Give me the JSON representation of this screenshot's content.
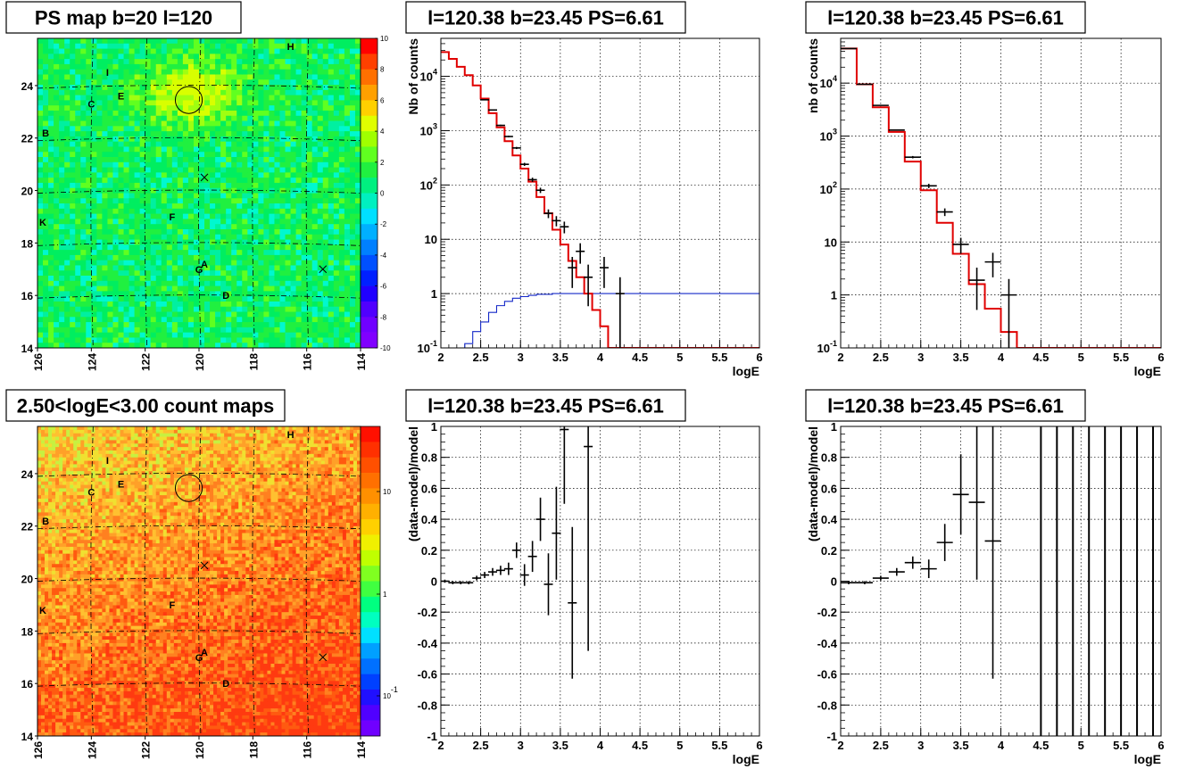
{
  "chart_data": [
    {
      "id": "ps_map",
      "type": "heatmap",
      "title": "PS map b=20 l=120",
      "x_ticks": [
        "126",
        "124",
        "122",
        "120",
        "118",
        "116",
        "114"
      ],
      "y_ticks": [
        "14",
        "16",
        "18",
        "20",
        "22",
        "24"
      ],
      "palette_ticks": [
        "10",
        "8",
        "6",
        "4",
        "2",
        "0",
        "-2",
        "-4",
        "-6",
        "-8",
        "-10"
      ],
      "zlim": [
        -10,
        10
      ],
      "markers": [
        {
          "label": "H",
          "l": 116.6,
          "b": 25.5
        },
        {
          "label": "I",
          "l": 123.4,
          "b": 24.5
        },
        {
          "label": "E",
          "l": 122.9,
          "b": 23.6
        },
        {
          "label": "C",
          "l": 124.0,
          "b": 23.3
        },
        {
          "label": "B",
          "l": 125.7,
          "b": 22.2
        },
        {
          "label": "F",
          "l": 121.0,
          "b": 19.0
        },
        {
          "label": "K",
          "l": 125.8,
          "b": 18.8
        },
        {
          "label": "A",
          "l": 119.8,
          "b": 17.2
        },
        {
          "label": "G",
          "l": 120.0,
          "b": 17.0
        },
        {
          "label": "D",
          "l": 119.0,
          "b": 16.0
        }
      ],
      "cross_markers": [
        {
          "l": 119.8,
          "b": 20.5
        },
        {
          "l": 115.4,
          "b": 17.0
        }
      ],
      "circle": {
        "l": 120.38,
        "b": 23.45,
        "r_deg": 0.5
      }
    },
    {
      "id": "spectrum_1",
      "type": "line",
      "title": "l=120.38 b=23.45 PS=6.61",
      "xlabel": "logE",
      "ylabel": "Nb of counts",
      "y_log": true,
      "xlim": [
        2,
        6
      ],
      "ylim": [
        0.1,
        50000
      ],
      "x_ticks": [
        "2",
        "2.5",
        "3",
        "3.5",
        "4",
        "4.5",
        "5",
        "5.5",
        "6"
      ],
      "y_ticks": [
        "10^-1",
        "1",
        "10",
        "10^2",
        "10^3",
        "10^4"
      ],
      "data_points": [
        {
          "x": 2.55,
          "y": 3700
        },
        {
          "x": 2.65,
          "y": 2400
        },
        {
          "x": 2.75,
          "y": 1250
        },
        {
          "x": 2.85,
          "y": 780
        },
        {
          "x": 2.95,
          "y": 480
        },
        {
          "x": 3.05,
          "y": 240
        },
        {
          "x": 3.15,
          "y": 125
        },
        {
          "x": 3.25,
          "y": 80
        },
        {
          "x": 3.35,
          "y": 30
        },
        {
          "x": 3.45,
          "y": 22
        },
        {
          "x": 3.55,
          "y": 17
        },
        {
          "x": 3.65,
          "y": 3
        },
        {
          "x": 3.75,
          "y": 6
        },
        {
          "x": 3.85,
          "y": 2
        },
        {
          "x": 4.05,
          "y": 3
        },
        {
          "x": 4.25,
          "y": 1
        }
      ],
      "model_steps": [
        {
          "x0": 2.0,
          "x1": 2.1,
          "y": 28000
        },
        {
          "x0": 2.1,
          "x1": 2.2,
          "y": 21000
        },
        {
          "x0": 2.2,
          "x1": 2.3,
          "y": 15000
        },
        {
          "x0": 2.3,
          "x1": 2.4,
          "y": 10500
        },
        {
          "x0": 2.4,
          "x1": 2.5,
          "y": 6800
        },
        {
          "x0": 2.5,
          "x1": 2.6,
          "y": 3900
        },
        {
          "x0": 2.6,
          "x1": 2.7,
          "y": 2100
        },
        {
          "x0": 2.7,
          "x1": 2.8,
          "y": 1150
        },
        {
          "x0": 2.8,
          "x1": 2.9,
          "y": 640
        },
        {
          "x0": 2.9,
          "x1": 3.0,
          "y": 350
        },
        {
          "x0": 3.0,
          "x1": 3.1,
          "y": 200
        },
        {
          "x0": 3.1,
          "x1": 3.2,
          "y": 115
        },
        {
          "x0": 3.2,
          "x1": 3.3,
          "y": 60
        },
        {
          "x0": 3.3,
          "x1": 3.4,
          "y": 30
        },
        {
          "x0": 3.4,
          "x1": 3.5,
          "y": 15
        },
        {
          "x0": 3.5,
          "x1": 3.6,
          "y": 8
        },
        {
          "x0": 3.6,
          "x1": 3.7,
          "y": 4
        },
        {
          "x0": 3.7,
          "x1": 3.8,
          "y": 2
        },
        {
          "x0": 3.8,
          "x1": 3.9,
          "y": 1
        },
        {
          "x0": 3.9,
          "x1": 4.0,
          "y": 0.5
        },
        {
          "x0": 4.0,
          "x1": 4.1,
          "y": 0.25
        },
        {
          "x0": 4.1,
          "x1": 4.2,
          "y": 0.1
        },
        {
          "x0": 4.2,
          "x1": 6.0,
          "y": 0.1
        }
      ],
      "blue_steps": [
        {
          "x0": 2.0,
          "x1": 2.3,
          "y": 0.1
        },
        {
          "x0": 2.3,
          "x1": 2.4,
          "y": 0.12
        },
        {
          "x0": 2.4,
          "x1": 2.5,
          "y": 0.2
        },
        {
          "x0": 2.5,
          "x1": 2.6,
          "y": 0.3
        },
        {
          "x0": 2.6,
          "x1": 2.7,
          "y": 0.45
        },
        {
          "x0": 2.7,
          "x1": 2.8,
          "y": 0.6
        },
        {
          "x0": 2.8,
          "x1": 2.9,
          "y": 0.72
        },
        {
          "x0": 2.9,
          "x1": 3.0,
          "y": 0.82
        },
        {
          "x0": 3.0,
          "x1": 3.1,
          "y": 0.88
        },
        {
          "x0": 3.1,
          "x1": 3.2,
          "y": 0.93
        },
        {
          "x0": 3.2,
          "x1": 3.4,
          "y": 0.97
        },
        {
          "x0": 3.4,
          "x1": 6.0,
          "y": 1.0
        }
      ]
    },
    {
      "id": "spectrum_2",
      "type": "line",
      "title": "l=120.38 b=23.45 PS=6.61",
      "xlabel": "logE",
      "ylabel": "nb of counts",
      "y_log": true,
      "xlim": [
        2,
        6
      ],
      "ylim": [
        0.1,
        70000
      ],
      "x_ticks": [
        "2",
        "2.5",
        "3",
        "3.5",
        "4",
        "4.5",
        "5",
        "5.5",
        "6"
      ],
      "y_ticks": [
        "10^-1",
        "1",
        "10",
        "10^2",
        "10^3",
        "10^4"
      ],
      "data_points": [
        {
          "x": 2.1,
          "y": 45000
        },
        {
          "x": 2.3,
          "y": 9500
        },
        {
          "x": 2.5,
          "y": 3800
        },
        {
          "x": 2.7,
          "y": 1300
        },
        {
          "x": 2.9,
          "y": 400
        },
        {
          "x": 3.1,
          "y": 115
        },
        {
          "x": 3.3,
          "y": 37
        },
        {
          "x": 3.5,
          "y": 9
        },
        {
          "x": 3.7,
          "y": 1.9
        },
        {
          "x": 3.9,
          "y": 4.2
        },
        {
          "x": 4.1,
          "y": 1.0
        }
      ],
      "model_steps": [
        {
          "x0": 2.0,
          "x1": 2.2,
          "y": 45000
        },
        {
          "x0": 2.2,
          "x1": 2.4,
          "y": 9500
        },
        {
          "x0": 2.4,
          "x1": 2.6,
          "y": 3500
        },
        {
          "x0": 2.6,
          "x1": 2.8,
          "y": 1200
        },
        {
          "x0": 2.8,
          "x1": 3.0,
          "y": 330
        },
        {
          "x0": 3.0,
          "x1": 3.2,
          "y": 95
        },
        {
          "x0": 3.2,
          "x1": 3.4,
          "y": 23
        },
        {
          "x0": 3.4,
          "x1": 3.6,
          "y": 6
        },
        {
          "x0": 3.6,
          "x1": 3.8,
          "y": 1.6
        },
        {
          "x0": 3.8,
          "x1": 4.0,
          "y": 0.55
        },
        {
          "x0": 4.0,
          "x1": 4.2,
          "y": 0.2
        },
        {
          "x0": 4.2,
          "x1": 6.0,
          "y": 0.1
        }
      ]
    },
    {
      "id": "count_map",
      "type": "heatmap",
      "title": "2.50<logE<3.00 count maps",
      "x_ticks": [
        "126",
        "124",
        "122",
        "120",
        "118",
        "116",
        "114"
      ],
      "y_ticks": [
        "14",
        "16",
        "18",
        "20",
        "22",
        "24"
      ],
      "palette_ticks": [
        "10",
        "1",
        "10^-1"
      ],
      "z_log": true,
      "markers": [
        {
          "label": "H",
          "l": 116.6,
          "b": 25.5
        },
        {
          "label": "I",
          "l": 123.4,
          "b": 24.5
        },
        {
          "label": "E",
          "l": 122.9,
          "b": 23.6
        },
        {
          "label": "C",
          "l": 124.0,
          "b": 23.3
        },
        {
          "label": "B",
          "l": 125.7,
          "b": 22.2
        },
        {
          "label": "F",
          "l": 121.0,
          "b": 19.0
        },
        {
          "label": "K",
          "l": 125.8,
          "b": 18.8
        },
        {
          "label": "A",
          "l": 119.8,
          "b": 17.2
        },
        {
          "label": "G",
          "l": 120.0,
          "b": 17.0
        },
        {
          "label": "D",
          "l": 119.0,
          "b": 16.0
        }
      ],
      "cross_markers": [
        {
          "l": 119.8,
          "b": 20.5
        },
        {
          "l": 115.4,
          "b": 17.0
        }
      ],
      "circle": {
        "l": 120.38,
        "b": 23.45,
        "r_deg": 0.5
      }
    },
    {
      "id": "residual_1",
      "type": "scatter",
      "title": "l=120.38 b=23.45 PS=6.61",
      "xlabel": "logE",
      "ylabel": "(data-model)/model",
      "xlim": [
        2,
        6
      ],
      "ylim": [
        -1,
        1
      ],
      "x_ticks": [
        "2",
        "2.5",
        "3",
        "3.5",
        "4",
        "4.5",
        "5",
        "5.5",
        "6"
      ],
      "y_ticks": [
        "-1",
        "-0.8",
        "-0.6",
        "-0.4",
        "-0.2",
        "0",
        "0.2",
        "0.4",
        "0.6",
        "0.8",
        "1"
      ],
      "points": [
        {
          "x": 2.05,
          "y": 0.0,
          "err": 0.01
        },
        {
          "x": 2.15,
          "y": -0.01,
          "err": 0.01
        },
        {
          "x": 2.25,
          "y": -0.01,
          "err": 0.01
        },
        {
          "x": 2.35,
          "y": -0.01,
          "err": 0.01
        },
        {
          "x": 2.45,
          "y": 0.02,
          "err": 0.015
        },
        {
          "x": 2.55,
          "y": 0.04,
          "err": 0.02
        },
        {
          "x": 2.65,
          "y": 0.06,
          "err": 0.025
        },
        {
          "x": 2.75,
          "y": 0.07,
          "err": 0.03
        },
        {
          "x": 2.85,
          "y": 0.08,
          "err": 0.04
        },
        {
          "x": 2.95,
          "y": 0.2,
          "err": 0.05
        },
        {
          "x": 3.05,
          "y": 0.04,
          "err": 0.07
        },
        {
          "x": 3.15,
          "y": 0.16,
          "err": 0.1
        },
        {
          "x": 3.25,
          "y": 0.4,
          "err": 0.14
        },
        {
          "x": 3.35,
          "y": -0.02,
          "err": 0.2
        },
        {
          "x": 3.45,
          "y": 0.31,
          "err": 0.3
        },
        {
          "x": 3.55,
          "y": 0.98,
          "err": 0.48
        },
        {
          "x": 3.65,
          "y": -0.14,
          "err": 0.49
        },
        {
          "x": 3.85,
          "y": 0.87,
          "err": 1.32
        }
      ]
    },
    {
      "id": "residual_2",
      "type": "scatter",
      "title": "l=120.38 b=23.45 PS=6.61",
      "xlabel": "logE",
      "ylabel": "(data-model)/model",
      "xlim": [
        2,
        6
      ],
      "ylim": [
        -1,
        1
      ],
      "x_ticks": [
        "2",
        "2.5",
        "3",
        "3.5",
        "4",
        "4.5",
        "5",
        "5.5",
        "6"
      ],
      "y_ticks": [
        "-1",
        "-0.8",
        "-0.6",
        "-0.4",
        "-0.2",
        "0",
        "0.2",
        "0.4",
        "0.6",
        "0.8",
        "1"
      ],
      "points": [
        {
          "x": 2.1,
          "y": -0.01,
          "err": 0.01
        },
        {
          "x": 2.3,
          "y": -0.01,
          "err": 0.01
        },
        {
          "x": 2.5,
          "y": 0.02,
          "err": 0.015
        },
        {
          "x": 2.7,
          "y": 0.06,
          "err": 0.025
        },
        {
          "x": 2.9,
          "y": 0.12,
          "err": 0.04
        },
        {
          "x": 3.1,
          "y": 0.08,
          "err": 0.06
        },
        {
          "x": 3.3,
          "y": 0.25,
          "err": 0.12
        },
        {
          "x": 3.5,
          "y": 0.56,
          "err": 0.26
        },
        {
          "x": 3.7,
          "y": 0.51,
          "err": 0.5
        },
        {
          "x": 3.9,
          "y": 0.26,
          "err": 0.89
        }
      ],
      "full_bars_x": [
        4.5,
        4.7,
        4.9,
        5.1,
        5.3,
        5.5,
        5.7,
        5.9
      ]
    }
  ]
}
